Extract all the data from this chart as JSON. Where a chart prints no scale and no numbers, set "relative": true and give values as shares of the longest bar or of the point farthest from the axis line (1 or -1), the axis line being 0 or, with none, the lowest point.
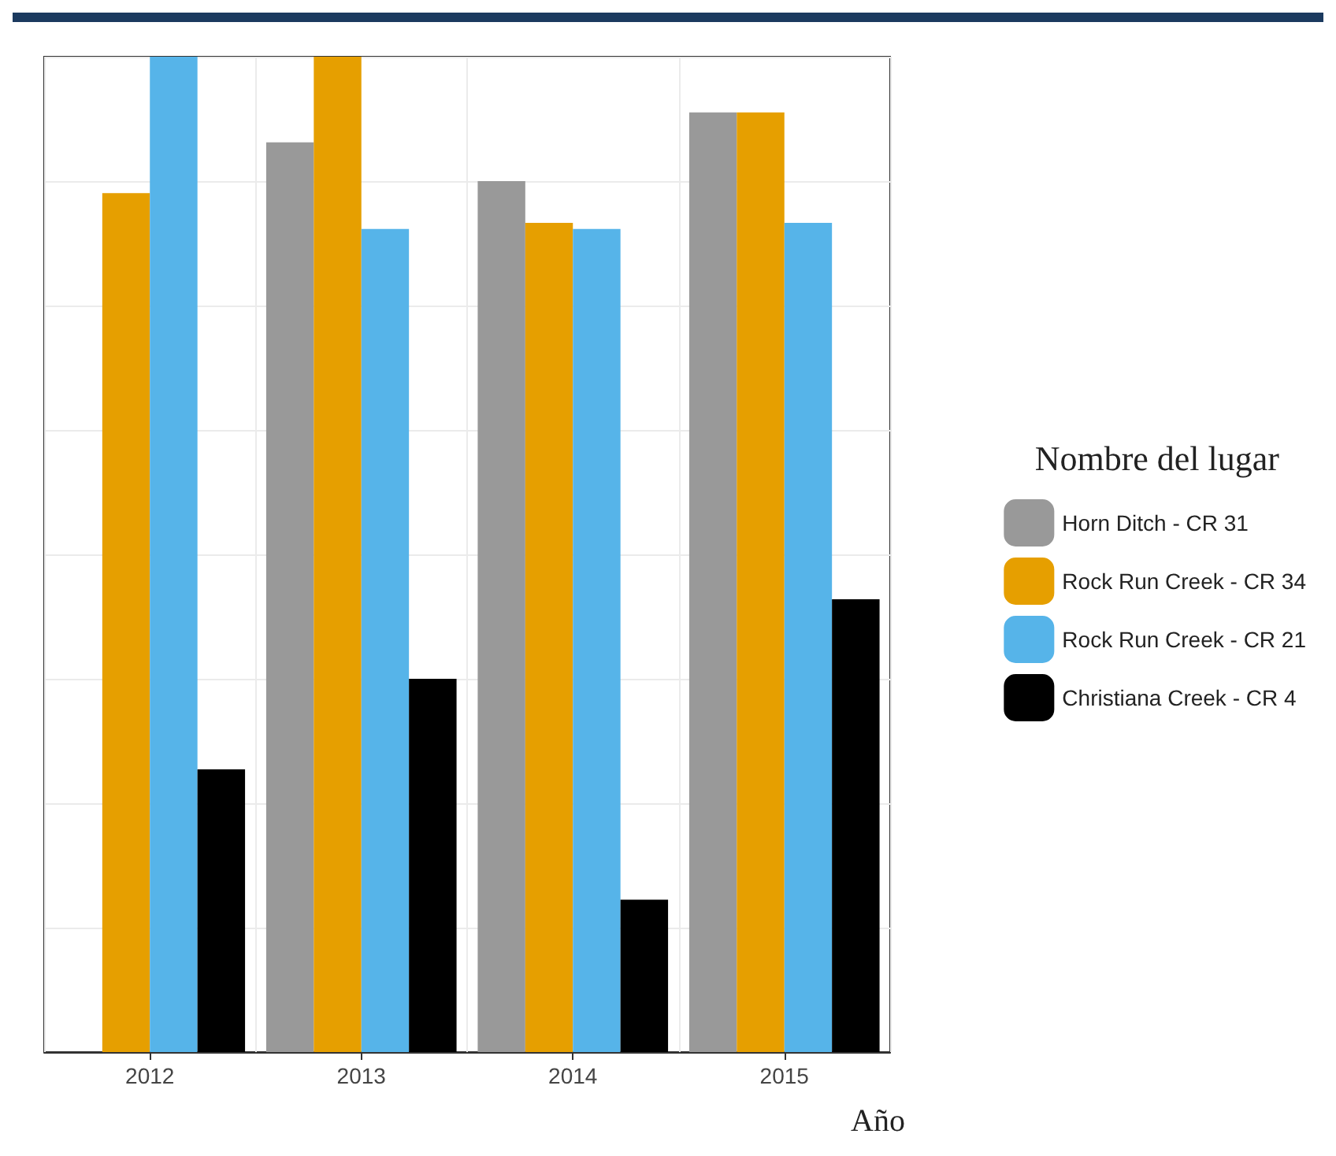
{
  "chart_data": {
    "type": "bar",
    "relative": true,
    "xlabel": "Año",
    "legend_title": "Nombre del lugar",
    "categories": [
      "2012",
      "2013",
      "2014",
      "2015"
    ],
    "series": [
      {
        "name": "Horn Ditch - CR 31",
        "color": "#999999",
        "values": [
          null,
          0.914,
          0.875,
          0.944
        ]
      },
      {
        "name": "Rock Run Creek - CR 34",
        "color": "#e69f00",
        "values": [
          0.863,
          1,
          0.833,
          0.944
        ]
      },
      {
        "name": "Rock Run Creek - CR 21",
        "color": "#56b4e9",
        "values": [
          1,
          0.827,
          0.827,
          0.833
        ]
      },
      {
        "name": "Christiana Creek - CR 4",
        "color": "#000000",
        "values": [
          0.284,
          0.375,
          0.153,
          0.455
        ]
      }
    ],
    "grid": true,
    "legend": "right"
  }
}
